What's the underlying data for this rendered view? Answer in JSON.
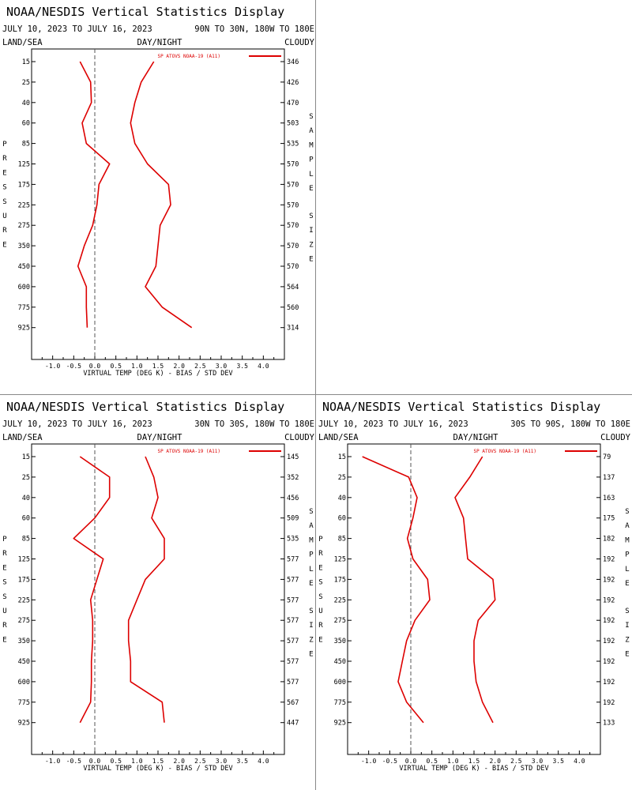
{
  "colors": {
    "series": "#dd0000",
    "axis": "#000000",
    "zero_line": "#555555",
    "divider": "#888888"
  },
  "panels": [
    {
      "title": "NOAA/NESDIS Vertical Statistics Display",
      "date_range": "JULY 10, 2023 TO JULY 16, 2023",
      "region": "90N TO 30N, 180W TO 180E",
      "surface": "LAND/SEA",
      "time_of_day": "DAY/NIGHT",
      "sky": "CLOUDY",
      "left_axis_label": [
        "P",
        "R",
        "E",
        "S",
        "S",
        "U",
        "R",
        "E"
      ],
      "right_axis_label_1": [
        "S",
        "A",
        "M",
        "P",
        "L",
        "E"
      ],
      "right_axis_label_2": [
        "S",
        "I",
        "Z",
        "E"
      ],
      "legend": "SP ATOVS NOAA-19 (A11)",
      "xlabel": "VIRTUAL TEMP (DEG K) - BIAS / STD DEV"
    },
    {
      "title": "NOAA/NESDIS Vertical Statistics Display",
      "date_range": "JULY 10, 2023 TO JULY 16, 2023",
      "region": "30N TO 30S, 180W TO 180E",
      "surface": "LAND/SEA",
      "time_of_day": "DAY/NIGHT",
      "sky": "CLOUDY",
      "left_axis_label": [
        "P",
        "R",
        "E",
        "S",
        "S",
        "U",
        "R",
        "E"
      ],
      "right_axis_label_1": [
        "S",
        "A",
        "M",
        "P",
        "L",
        "E"
      ],
      "right_axis_label_2": [
        "S",
        "I",
        "Z",
        "E"
      ],
      "legend": "SP ATOVS NOAA-19 (A11)",
      "xlabel": "VIRTUAL TEMP (DEG K) - BIAS / STD DEV"
    },
    {
      "title": "NOAA/NESDIS Vertical Statistics Display",
      "date_range": "JULY 10, 2023 TO JULY 16, 2023",
      "region": "30S TO 90S, 180W TO 180E",
      "surface": "LAND/SEA",
      "time_of_day": "DAY/NIGHT",
      "sky": "CLOUDY",
      "left_axis_label": [
        "P",
        "R",
        "E",
        "S",
        "S",
        "U",
        "R",
        "E"
      ],
      "right_axis_label_1": [
        "S",
        "A",
        "M",
        "P",
        "L",
        "E"
      ],
      "right_axis_label_2": [
        "S",
        "I",
        "Z",
        "E"
      ],
      "legend": "SP ATOVS NOAA-19 (A11)",
      "xlabel": "VIRTUAL TEMP (DEG K) - BIAS / STD DEV"
    }
  ],
  "chart_data": [
    {
      "type": "line",
      "xlim": [
        -1.5,
        4.5
      ],
      "x_ticks": [
        "-1.0",
        "-0.5",
        "0.0",
        "0.5",
        "1.0",
        "1.5",
        "2.0",
        "2.5",
        "3.0",
        "3.5",
        "4.0"
      ],
      "x_tick_values": [
        -1.0,
        -0.5,
        0.0,
        0.5,
        1.0,
        1.5,
        2.0,
        2.5,
        3.0,
        3.5,
        4.0
      ],
      "pressure_levels": [
        "15",
        "25",
        "40",
        "60",
        "85",
        "125",
        "175",
        "225",
        "275",
        "350",
        "450",
        "600",
        "775",
        "925"
      ],
      "sample_size": [
        "346",
        "426",
        "470",
        "503",
        "535",
        "570",
        "570",
        "570",
        "570",
        "570",
        "570",
        "564",
        "560",
        "314"
      ],
      "series": [
        {
          "values": [
            -0.35,
            -0.1,
            -0.08,
            -0.3,
            -0.2,
            0.35,
            0.1,
            0.05,
            -0.05,
            -0.25,
            -0.4,
            -0.2,
            -0.2,
            -0.18
          ]
        },
        {
          "values": [
            1.4,
            1.1,
            0.95,
            0.85,
            0.95,
            1.25,
            1.75,
            1.8,
            1.55,
            1.5,
            1.45,
            1.2,
            1.6,
            2.3
          ]
        }
      ]
    },
    {
      "type": "line",
      "xlim": [
        -1.5,
        4.5
      ],
      "x_ticks": [
        "-1.0",
        "-0.5",
        "0.0",
        "0.5",
        "1.0",
        "1.5",
        "2.0",
        "2.5",
        "3.0",
        "3.5",
        "4.0"
      ],
      "x_tick_values": [
        -1.0,
        -0.5,
        0.0,
        0.5,
        1.0,
        1.5,
        2.0,
        2.5,
        3.0,
        3.5,
        4.0
      ],
      "pressure_levels": [
        "15",
        "25",
        "40",
        "60",
        "85",
        "125",
        "175",
        "225",
        "275",
        "350",
        "450",
        "600",
        "775",
        "925"
      ],
      "sample_size": [
        "145",
        "352",
        "456",
        "509",
        "535",
        "577",
        "577",
        "577",
        "577",
        "577",
        "577",
        "577",
        "567",
        "447"
      ],
      "series": [
        {
          "values": [
            -0.35,
            0.35,
            0.35,
            0.0,
            -0.5,
            0.2,
            0.05,
            -0.1,
            -0.05,
            -0.05,
            -0.08,
            -0.08,
            -0.1,
            -0.35
          ]
        },
        {
          "values": [
            1.2,
            1.4,
            1.5,
            1.35,
            1.65,
            1.65,
            1.2,
            1.0,
            0.8,
            0.8,
            0.85,
            0.85,
            1.6,
            1.65
          ]
        }
      ]
    },
    {
      "type": "line",
      "xlim": [
        -1.5,
        4.5
      ],
      "x_ticks": [
        "-1.0",
        "-0.5",
        "0.0",
        "0.5",
        "1.0",
        "1.5",
        "2.0",
        "2.5",
        "3.0",
        "3.5",
        "4.0"
      ],
      "x_tick_values": [
        -1.0,
        -0.5,
        0.0,
        0.5,
        1.0,
        1.5,
        2.0,
        2.5,
        3.0,
        3.5,
        4.0
      ],
      "pressure_levels": [
        "15",
        "25",
        "40",
        "60",
        "85",
        "125",
        "175",
        "225",
        "275",
        "350",
        "450",
        "600",
        "775",
        "925"
      ],
      "sample_size": [
        "79",
        "137",
        "163",
        "175",
        "182",
        "192",
        "192",
        "192",
        "192",
        "192",
        "192",
        "192",
        "192",
        "133"
      ],
      "series": [
        {
          "values": [
            -1.15,
            -0.05,
            0.15,
            0.05,
            -0.08,
            0.05,
            0.4,
            0.45,
            0.1,
            -0.1,
            -0.2,
            -0.3,
            -0.1,
            0.3
          ]
        },
        {
          "values": [
            1.7,
            1.4,
            1.05,
            1.25,
            1.3,
            1.35,
            1.95,
            2.0,
            1.6,
            1.5,
            1.5,
            1.55,
            1.7,
            1.95
          ]
        }
      ]
    }
  ]
}
